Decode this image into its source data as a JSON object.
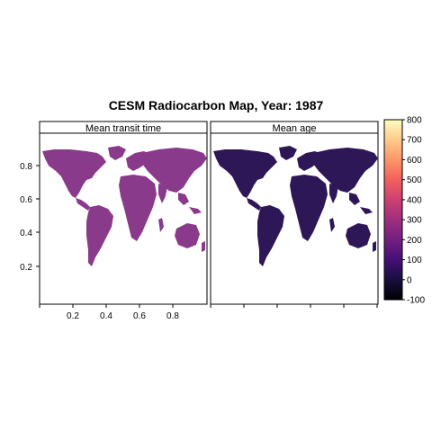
{
  "title": "CESM Radiocarbon Map,  Year:  1987",
  "panels": [
    {
      "label": "Mean transit time",
      "tint": "#8a3a8a",
      "tint_dark": "#6e2c7a",
      "tint_light": "#a8488a"
    },
    {
      "label": "Mean age",
      "tint": "#2e1756",
      "tint_dark": "#1e0e40",
      "tint_light": "#3d1e66"
    }
  ],
  "x_ticks": [
    "0.2",
    "0.4",
    "0.6",
    "0.8"
  ],
  "y_ticks": [
    "0.8",
    "0.6",
    "0.4",
    "0.2"
  ],
  "colorbar": {
    "ticks": [
      "800",
      "700",
      "600",
      "500",
      "400",
      "300",
      "200",
      "100",
      "0",
      "-100"
    ],
    "min": -100,
    "max": 800,
    "palette": [
      "#000004",
      "#180f3d",
      "#440f76",
      "#721f81",
      "#9e2f7f",
      "#cd4071",
      "#f1605d",
      "#fd9668",
      "#feca8d",
      "#fcfdbf"
    ]
  }
}
